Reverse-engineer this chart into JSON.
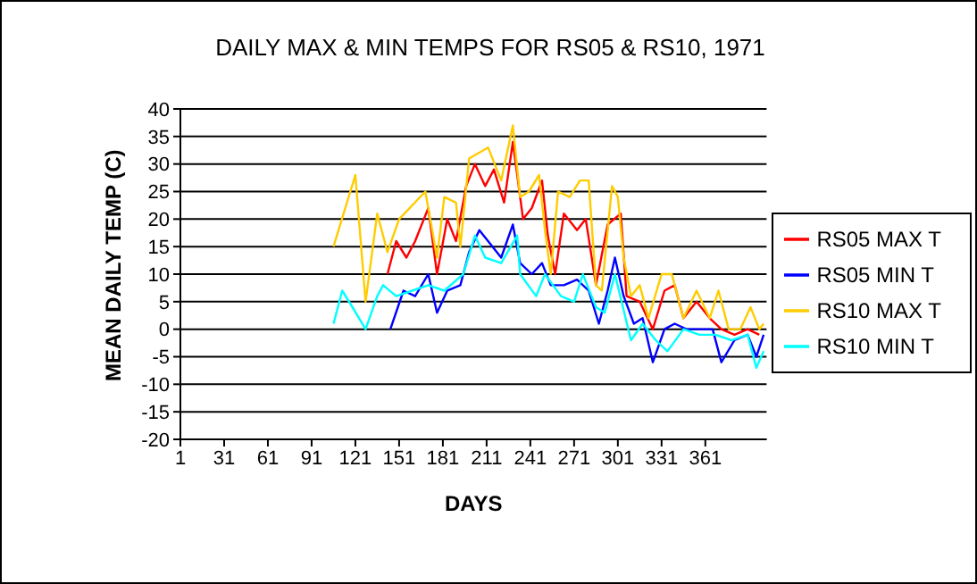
{
  "chart_data": {
    "type": "line",
    "title": "DAILY MAX & MIN TEMPS FOR RS05 & RS10, 1971",
    "xlabel": "DAYS",
    "ylabel": "MEAN DAILY TEMP (C)",
    "xlim": [
      1,
      403
    ],
    "xticks": [
      1,
      31,
      61,
      91,
      121,
      151,
      181,
      211,
      241,
      271,
      301,
      331,
      361
    ],
    "ylim": [
      -20,
      40
    ],
    "yticks": [
      -20,
      -15,
      -10,
      -5,
      0,
      5,
      10,
      15,
      20,
      25,
      30,
      35,
      40
    ],
    "grid": "y",
    "legend": "right",
    "marker": "none",
    "line_style": "solid",
    "series": [
      {
        "name": "RS05 MAX T",
        "color": "#ff0000",
        "x": [
          143,
          149,
          156,
          162,
          171,
          177,
          184,
          190,
          197,
          203,
          210,
          216,
          223,
          229,
          236,
          242,
          249,
          253,
          258,
          264,
          273,
          279,
          286,
          294,
          303,
          307,
          316,
          325,
          333,
          340,
          346,
          355,
          364,
          372,
          381,
          390,
          398
        ],
        "values": [
          10,
          16,
          13,
          16,
          22,
          10,
          20,
          16,
          26,
          30,
          26,
          29,
          23,
          34,
          20,
          22,
          27,
          17,
          10,
          21,
          18,
          20,
          8,
          19,
          21,
          6,
          5,
          0,
          7,
          8,
          2,
          5,
          2,
          0,
          -1,
          0,
          -1
        ]
      },
      {
        "name": "RS10 MAX T",
        "color": "#ffcc00",
        "x": [
          106,
          121,
          128,
          136,
          143,
          151,
          169,
          177,
          182,
          190,
          193,
          199,
          212,
          221,
          229,
          234,
          240,
          247,
          251,
          255,
          260,
          268,
          275,
          281,
          286,
          290,
          297,
          301,
          305,
          310,
          316,
          322,
          331,
          338,
          346,
          355,
          364,
          370,
          377,
          385,
          392,
          398,
          401
        ],
        "values": [
          15,
          28,
          5,
          21,
          14,
          20,
          25,
          13,
          24,
          23,
          15,
          31,
          33,
          27,
          37,
          24,
          25,
          28,
          18,
          10,
          25,
          24,
          27,
          27,
          8,
          7,
          26,
          24,
          13,
          6,
          8,
          2,
          10,
          10,
          2,
          7,
          2,
          7,
          0,
          0,
          4,
          0,
          1
        ]
      },
      {
        "name": "RS05 MIN T",
        "color": "#0000ff",
        "x": [
          145,
          154,
          162,
          171,
          177,
          184,
          193,
          199,
          206,
          212,
          221,
          229,
          234,
          242,
          249,
          255,
          264,
          273,
          281,
          288,
          294,
          299,
          305,
          312,
          318,
          325,
          333,
          340,
          348,
          357,
          366,
          372,
          381,
          390,
          396,
          401
        ],
        "values": [
          0,
          7,
          6,
          10,
          3,
          7,
          8,
          14,
          18,
          16,
          13,
          19,
          12,
          10,
          12,
          8,
          8,
          9,
          7,
          1,
          7,
          13,
          6,
          1,
          2,
          -6,
          0,
          1,
          0,
          0,
          0,
          -6,
          -2,
          -1,
          -5,
          -1
        ]
      },
      {
        "name": "RS10 MIN T",
        "color": "#00ffff",
        "x": [
          106,
          112,
          119,
          128,
          136,
          140,
          149,
          160,
          171,
          182,
          195,
          203,
          210,
          221,
          232,
          234,
          245,
          251,
          262,
          271,
          277,
          286,
          292,
          299,
          310,
          318,
          327,
          335,
          346,
          357,
          368,
          379,
          390,
          396,
          401
        ],
        "values": [
          1,
          7,
          4,
          0,
          6,
          8,
          6,
          7,
          8,
          7,
          10,
          17,
          13,
          12,
          17,
          10,
          6,
          10,
          6,
          5,
          10,
          4,
          3,
          10,
          -2,
          1,
          -2,
          -4,
          0,
          -1,
          -1,
          -2,
          -1,
          -7,
          -4
        ]
      }
    ]
  }
}
